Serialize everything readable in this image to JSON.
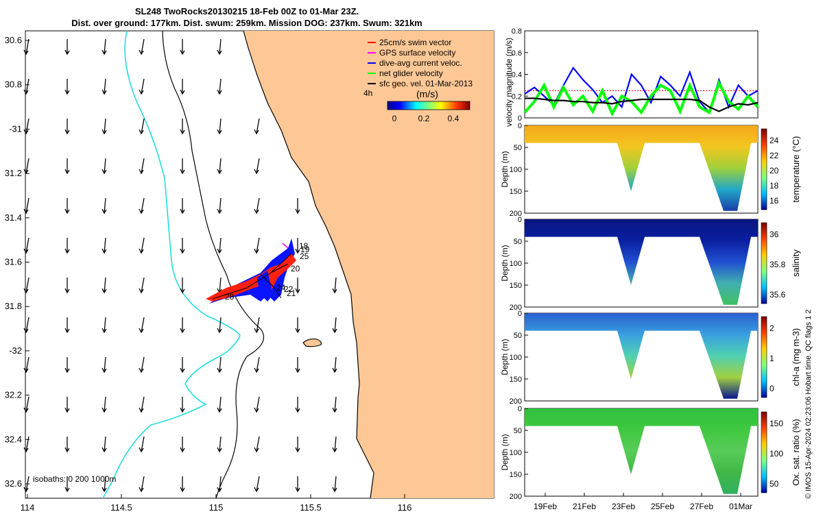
{
  "title": {
    "line1": "SL248 TwoRocks20130215 18-Feb 00Z to 01-Mar 23Z.",
    "line2": "Dist. over ground: 177km. Dist. swum: 259km. Mission DOG: 237km. Swum: 321km"
  },
  "map": {
    "lon_ticks": [
      "114",
      "114.5",
      "115",
      "115.5",
      "116"
    ],
    "lat_ticks": [
      "30.6",
      "30.8",
      "-31",
      "31.2",
      "31.4",
      "31.6",
      "31.8",
      "-32",
      "32.2",
      "32.4",
      "32.6"
    ],
    "legend": [
      {
        "label": "25cm/s swim vector",
        "color": "#ff0000"
      },
      {
        "label": "GPS surface velocity",
        "color": "#ff00ff"
      },
      {
        "label": "dive-avg current veloc.",
        "color": "#0000ff"
      },
      {
        "label": "net glider velocity",
        "color": "#00ff00"
      },
      {
        "label": "sfc geo. vel. 01-Mar-2013",
        "color": "#000000"
      }
    ],
    "time_step": "4h",
    "colorbar_unit": "(m/s)",
    "colorbar_ticks": [
      "0",
      "0.2",
      "0.4"
    ],
    "isobath_label": "isobaths: 0   200  1000m",
    "day_labels": [
      "18",
      "19",
      "25",
      "20",
      "24",
      "22",
      "21",
      "28"
    ],
    "colors": {
      "land": "#fdc896",
      "isobath_1000": "#22dddd",
      "isobath_200": "#000000",
      "track_red": "#ff2010",
      "track_blue": "#0a14ff"
    }
  },
  "velocity_panel": {
    "ylabel": "velocity magnitude (m/s)",
    "yticks": [
      "0",
      "0.2",
      "0.4",
      "0.6",
      "0.8"
    ]
  },
  "sections": [
    {
      "cbar_label": "temperature (°C)",
      "cbar_ticks": [
        "24",
        "22",
        "20",
        "18",
        "16"
      ],
      "ylabel": "Depth (m)"
    },
    {
      "cbar_label": "salinity",
      "cbar_ticks": [
        "36",
        "35.8",
        "35.6"
      ],
      "ylabel": "Depth (m)"
    },
    {
      "cbar_label": "chl-a (mg m-3)",
      "cbar_ticks": [
        "2",
        "1",
        "0"
      ],
      "ylabel": "Depth (m)"
    },
    {
      "cbar_label": "Ox. sat. ratio (%)",
      "cbar_ticks": [
        "150",
        "100",
        "50"
      ],
      "ylabel": "Depth (m)"
    }
  ],
  "depth_ticks": [
    "0",
    "50",
    "100",
    "150",
    "200"
  ],
  "date_ticks": [
    "19Feb",
    "21Feb",
    "23Feb",
    "25Feb",
    "27Feb",
    "01Mar"
  ],
  "credit": "© IMOS 15-Apr-2024 02:23:06 Hobart time. QC flags 1  2",
  "chart_data": [
    {
      "type": "line",
      "title": "velocity magnitude time series",
      "xlabel": "",
      "ylabel": "velocity magnitude (m/s)",
      "ylim": [
        0,
        0.8
      ],
      "x_days": [
        0,
        0.5,
        1,
        1.5,
        2,
        2.5,
        3,
        3.5,
        4,
        4.5,
        5,
        5.5,
        6,
        6.5,
        7,
        7.5,
        8,
        8.5,
        9,
        9.5,
        10,
        10.5,
        11,
        11.5,
        12
      ],
      "series": [
        {
          "name": "25cm/s swim vector",
          "color": "#ff0000",
          "values": [
            0.25,
            0.25,
            0.25,
            0.25,
            0.25,
            0.25,
            0.25,
            0.25,
            0.25,
            0.25,
            0.25,
            0.25,
            0.25,
            0.25,
            0.25,
            0.25,
            0.25,
            0.25,
            0.25,
            0.25,
            0.25,
            0.25,
            0.25,
            0.25,
            0.25
          ]
        },
        {
          "name": "dive-avg current veloc.",
          "color": "#0000ff",
          "values": [
            0.22,
            0.28,
            0.2,
            0.12,
            0.3,
            0.46,
            0.35,
            0.26,
            0.14,
            0.2,
            0.1,
            0.4,
            0.3,
            0.14,
            0.38,
            0.3,
            0.2,
            0.42,
            0.15,
            0.05,
            0.35,
            0.1,
            0.3,
            0.2,
            0.25
          ]
        },
        {
          "name": "net glider velocity",
          "color": "#00ff00",
          "values": [
            0.05,
            0.15,
            0.3,
            0.1,
            0.28,
            0.12,
            0.2,
            0.06,
            0.25,
            0.04,
            0.2,
            0.15,
            0.05,
            0.2,
            0.3,
            0.25,
            0.06,
            0.3,
            0.1,
            0.05,
            0.32,
            0.15,
            0.08,
            0.2,
            0.1
          ]
        },
        {
          "name": "sfc geo. vel.",
          "color": "#000000",
          "values": [
            0.18,
            0.18,
            0.17,
            0.16,
            0.16,
            0.15,
            0.15,
            0.14,
            0.14,
            0.13,
            0.15,
            0.16,
            0.17,
            0.17,
            0.17,
            0.17,
            0.17,
            0.17,
            0.16,
            0.1,
            0.06,
            0.1,
            0.13,
            0.12,
            0.14
          ]
        }
      ]
    },
    {
      "type": "heatmap",
      "title": "Depth sections",
      "xlabel": "",
      "ylabel": "Depth (m)",
      "ylim": [
        0,
        200
      ],
      "x": [
        "19Feb",
        "21Feb",
        "23Feb",
        "25Feb",
        "27Feb",
        "01Mar"
      ],
      "max_depth_profile_m": [
        40,
        40,
        40,
        40,
        150,
        40,
        40,
        195,
        40
      ],
      "temperature_range_C": [
        16,
        25
      ],
      "salinity_range": [
        35.5,
        36.1
      ],
      "chl_a_range_mg_m3": [
        0,
        2
      ],
      "ox_sat_range_pct": [
        30,
        170
      ]
    }
  ]
}
